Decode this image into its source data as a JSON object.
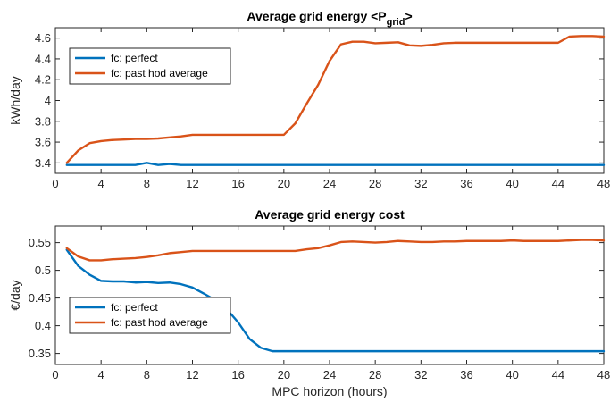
{
  "colors": {
    "perfect": "#0072BD",
    "past_hod": "#D95319"
  },
  "chart_data": [
    {
      "type": "line",
      "title": "Average grid energy <P",
      "title_sub": "grid",
      "title_end": ">",
      "xlabel": "",
      "ylabel": "kWh/day",
      "xlim": [
        0,
        48
      ],
      "ylim": [
        3.3,
        4.7
      ],
      "xticks": [
        0,
        4,
        8,
        12,
        16,
        20,
        24,
        28,
        32,
        36,
        40,
        44,
        48
      ],
      "yticks": [
        3.4,
        3.6,
        3.8,
        4.0,
        4.2,
        4.4,
        4.6
      ],
      "ytick_labels": [
        "3.4",
        "3.6",
        "3.8",
        "4",
        "4.2",
        "4.4",
        "4.6"
      ],
      "legend_position": "top-left",
      "series": [
        {
          "name": "fc: perfect",
          "color_key": "perfect",
          "x": [
            1,
            2,
            3,
            4,
            5,
            6,
            7,
            8,
            9,
            10,
            11,
            12,
            13,
            14,
            15,
            16,
            17,
            18,
            19,
            20,
            21,
            22,
            23,
            24,
            25,
            26,
            27,
            28,
            29,
            30,
            31,
            32,
            33,
            34,
            35,
            36,
            37,
            38,
            39,
            40,
            41,
            42,
            43,
            44,
            45,
            46,
            47,
            48
          ],
          "y": [
            3.38,
            3.38,
            3.38,
            3.38,
            3.38,
            3.38,
            3.38,
            3.4,
            3.38,
            3.39,
            3.38,
            3.38,
            3.38,
            3.38,
            3.38,
            3.38,
            3.38,
            3.38,
            3.38,
            3.38,
            3.38,
            3.38,
            3.38,
            3.38,
            3.38,
            3.38,
            3.38,
            3.38,
            3.38,
            3.38,
            3.38,
            3.38,
            3.38,
            3.38,
            3.38,
            3.38,
            3.38,
            3.38,
            3.38,
            3.38,
            3.38,
            3.38,
            3.38,
            3.38,
            3.38,
            3.38,
            3.38,
            3.38
          ]
        },
        {
          "name": "fc: past hod average",
          "color_key": "past_hod",
          "x": [
            1,
            2,
            3,
            4,
            5,
            6,
            7,
            8,
            9,
            10,
            11,
            12,
            13,
            14,
            15,
            16,
            17,
            18,
            19,
            20,
            21,
            22,
            23,
            24,
            25,
            26,
            27,
            28,
            29,
            30,
            31,
            32,
            33,
            34,
            35,
            36,
            37,
            38,
            39,
            40,
            41,
            42,
            43,
            44,
            45,
            46,
            47,
            48
          ],
          "y": [
            3.4,
            3.52,
            3.59,
            3.61,
            3.62,
            3.625,
            3.63,
            3.63,
            3.635,
            3.645,
            3.655,
            3.67,
            3.67,
            3.67,
            3.67,
            3.67,
            3.67,
            3.67,
            3.67,
            3.67,
            3.78,
            3.97,
            4.15,
            4.38,
            4.54,
            4.565,
            4.565,
            4.55,
            4.555,
            4.56,
            4.53,
            4.525,
            4.535,
            4.55,
            4.555,
            4.555,
            4.555,
            4.555,
            4.555,
            4.555,
            4.555,
            4.555,
            4.555,
            4.555,
            4.615,
            4.62,
            4.62,
            4.615
          ]
        }
      ]
    },
    {
      "type": "line",
      "title": "Average grid energy cost",
      "xlabel": "MPC horizon (hours)",
      "ylabel": "€/day",
      "xlim": [
        0,
        48
      ],
      "ylim": [
        0.33,
        0.58
      ],
      "xticks": [
        0,
        4,
        8,
        12,
        16,
        20,
        24,
        28,
        32,
        36,
        40,
        44,
        48
      ],
      "yticks": [
        0.35,
        0.4,
        0.45,
        0.5,
        0.55
      ],
      "ytick_labels": [
        "0.35",
        "0.4",
        "0.45",
        "0.5",
        "0.55"
      ],
      "legend_position": "bottom-left",
      "series": [
        {
          "name": "fc: perfect",
          "color_key": "perfect",
          "x": [
            1,
            2,
            3,
            4,
            5,
            6,
            7,
            8,
            9,
            10,
            11,
            12,
            13,
            14,
            15,
            16,
            17,
            18,
            19,
            20,
            21,
            22,
            23,
            24,
            25,
            26,
            27,
            28,
            29,
            30,
            31,
            32,
            33,
            34,
            35,
            36,
            37,
            38,
            39,
            40,
            41,
            42,
            43,
            44,
            45,
            46,
            47,
            48
          ],
          "y": [
            0.537,
            0.508,
            0.492,
            0.481,
            0.48,
            0.48,
            0.478,
            0.479,
            0.477,
            0.478,
            0.475,
            0.469,
            0.458,
            0.446,
            0.43,
            0.406,
            0.376,
            0.36,
            0.354,
            0.354,
            0.354,
            0.354,
            0.354,
            0.354,
            0.354,
            0.354,
            0.354,
            0.354,
            0.354,
            0.354,
            0.354,
            0.354,
            0.354,
            0.354,
            0.354,
            0.354,
            0.354,
            0.354,
            0.354,
            0.354,
            0.354,
            0.354,
            0.354,
            0.354,
            0.354,
            0.354,
            0.354,
            0.354
          ]
        },
        {
          "name": "fc: past hod average",
          "color_key": "past_hod",
          "x": [
            1,
            2,
            3,
            4,
            5,
            6,
            7,
            8,
            9,
            10,
            11,
            12,
            13,
            14,
            15,
            16,
            17,
            18,
            19,
            20,
            21,
            22,
            23,
            24,
            25,
            26,
            27,
            28,
            29,
            30,
            31,
            32,
            33,
            34,
            35,
            36,
            37,
            38,
            39,
            40,
            41,
            42,
            43,
            44,
            45,
            46,
            47,
            48
          ],
          "y": [
            0.54,
            0.525,
            0.518,
            0.518,
            0.52,
            0.521,
            0.522,
            0.524,
            0.527,
            0.531,
            0.533,
            0.535,
            0.535,
            0.535,
            0.535,
            0.535,
            0.535,
            0.535,
            0.535,
            0.535,
            0.535,
            0.538,
            0.54,
            0.545,
            0.551,
            0.552,
            0.551,
            0.55,
            0.551,
            0.553,
            0.552,
            0.551,
            0.551,
            0.552,
            0.552,
            0.553,
            0.553,
            0.553,
            0.553,
            0.554,
            0.553,
            0.553,
            0.553,
            0.553,
            0.554,
            0.555,
            0.555,
            0.554
          ]
        }
      ]
    }
  ]
}
